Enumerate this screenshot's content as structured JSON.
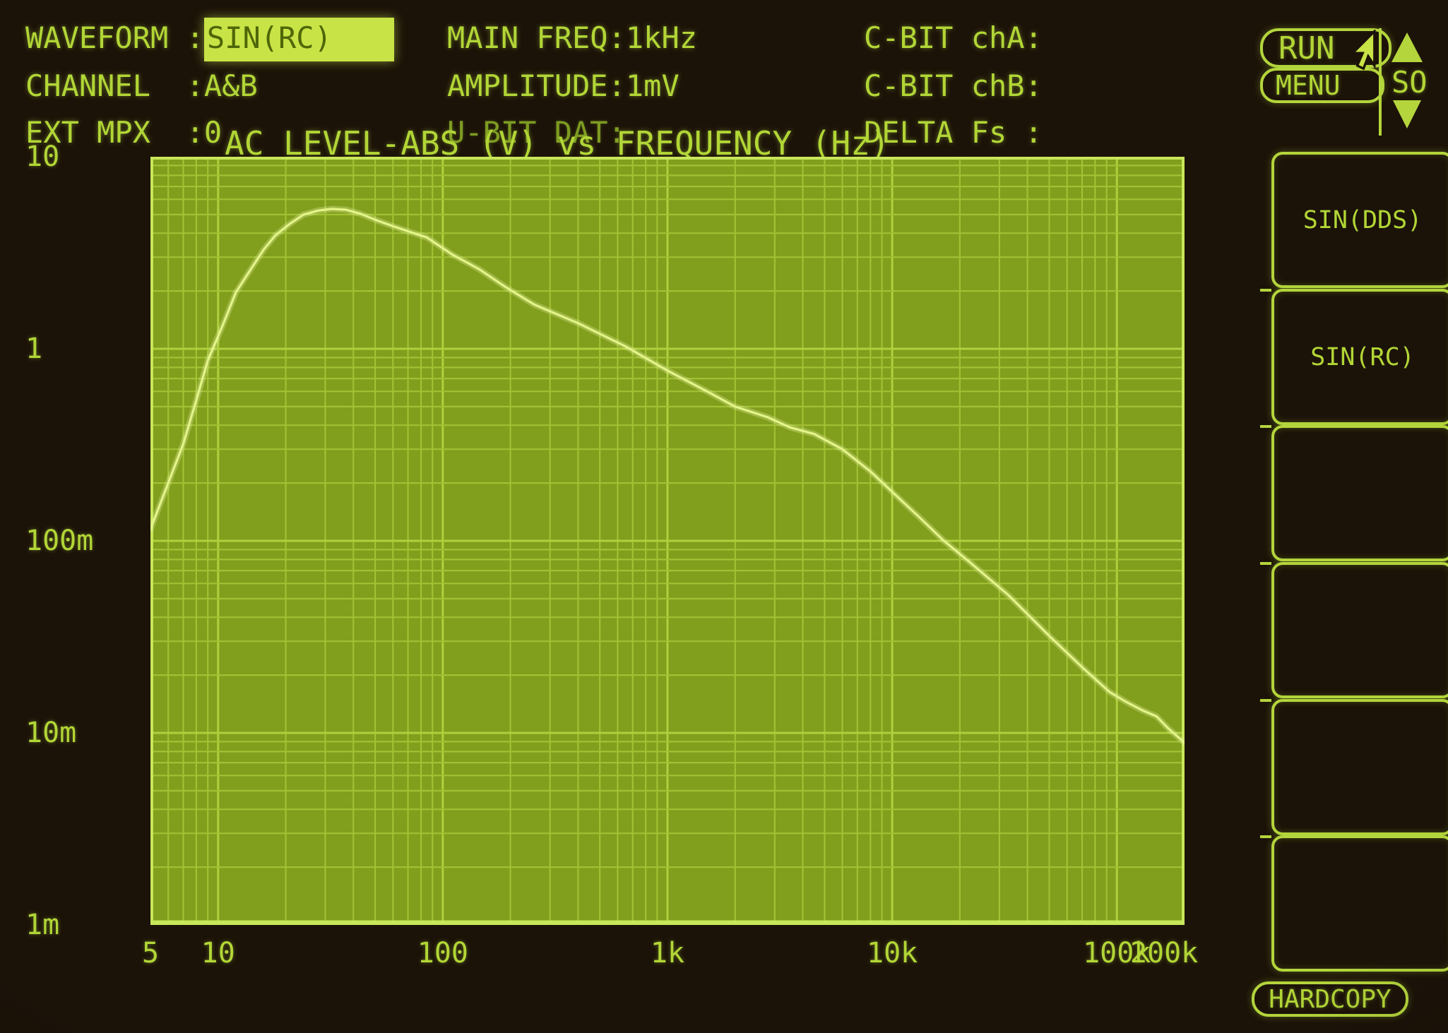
{
  "colors": {
    "background": "#1c1308",
    "text": "#b2d636",
    "text_dim": "#7e9c22",
    "highlight_bg": "#c8e346",
    "highlight_text": "#4f6608",
    "plot_bg": "#819e1c",
    "grid_minor": "#a2c134",
    "grid_major": "#b0d03e",
    "plot_border": "#c8e65a",
    "curve": "#e4f488"
  },
  "header": {
    "left": [
      {
        "prefix": "WAVEFORM :",
        "value": "SIN(RC)",
        "highlighted": true
      },
      {
        "prefix": "CHANNEL  :",
        "value": "A&B"
      },
      {
        "prefix": "EXT MPX  :",
        "value": "0"
      }
    ],
    "middle": [
      {
        "prefix": "MAIN FREQ:",
        "value": "1kHz"
      },
      {
        "prefix": "AMPLITUDE:",
        "value": "1mV"
      },
      {
        "prefix": "U-BIT DAT:",
        "value": "",
        "dim": true
      }
    ],
    "right": [
      {
        "prefix": "C-BIT chA:",
        "value": ""
      },
      {
        "prefix": "C-BIT chB:",
        "value": ""
      },
      {
        "prefix": "DELTA Fs :",
        "value": ""
      }
    ]
  },
  "controls": {
    "run": "RUN",
    "menu": "MENU",
    "scroll_label": "SO",
    "hardcopy": "HARDCOPY"
  },
  "sidebar": {
    "items": [
      {
        "label": "SIN(DDS)"
      },
      {
        "label": "SIN(RC)"
      },
      {
        "label": ""
      },
      {
        "label": ""
      },
      {
        "label": ""
      },
      {
        "label": ""
      }
    ]
  },
  "chart_data": {
    "type": "line",
    "title": "AC LEVEL-ABS (V) vs FREQUENCY (Hz)",
    "xlabel": "FREQUENCY (Hz)",
    "ylabel": "AC LEVEL-ABS (V)",
    "x_axis": {
      "scale": "log",
      "min": 5,
      "max": 200000,
      "tick_labels": [
        {
          "f": 5,
          "t": "5"
        },
        {
          "f": 10,
          "t": "10"
        },
        {
          "f": 100,
          "t": "100"
        },
        {
          "f": 1000,
          "t": "1k"
        },
        {
          "f": 10000,
          "t": "10k"
        },
        {
          "f": 100000,
          "t": "100k"
        },
        {
          "f": 200000,
          "t": "200k"
        }
      ]
    },
    "y_axis": {
      "scale": "log",
      "min": 0.001,
      "max": 10,
      "tick_labels": [
        {
          "v": 10,
          "t": "10"
        },
        {
          "v": 1,
          "t": "1"
        },
        {
          "v": 0.1,
          "t": "100m"
        },
        {
          "v": 0.01,
          "t": "10m"
        },
        {
          "v": 0.001,
          "t": "1m"
        }
      ]
    },
    "grid": "log-log full decade grid",
    "legend": "none",
    "series": [
      {
        "name": "AC LEVEL-ABS vs FREQUENCY",
        "points": [
          [
            5,
            0.115
          ],
          [
            6,
            0.2
          ],
          [
            7,
            0.32
          ],
          [
            8,
            0.54
          ],
          [
            9,
            0.87
          ],
          [
            10.5,
            1.33
          ],
          [
            12,
            1.97
          ],
          [
            14,
            2.6
          ],
          [
            16,
            3.3
          ],
          [
            18,
            3.9
          ],
          [
            21,
            4.5
          ],
          [
            24,
            5.0
          ],
          [
            28,
            5.25
          ],
          [
            32,
            5.35
          ],
          [
            37,
            5.3
          ],
          [
            43,
            5.05
          ],
          [
            50,
            4.7
          ],
          [
            60,
            4.35
          ],
          [
            72,
            4.05
          ],
          [
            85,
            3.8
          ],
          [
            110,
            3.1
          ],
          [
            145,
            2.6
          ],
          [
            190,
            2.1
          ],
          [
            255,
            1.7
          ],
          [
            400,
            1.36
          ],
          [
            650,
            1.03
          ],
          [
            1000,
            0.77
          ],
          [
            1500,
            0.6
          ],
          [
            2000,
            0.5
          ],
          [
            2800,
            0.44
          ],
          [
            3500,
            0.39
          ],
          [
            4500,
            0.36
          ],
          [
            6000,
            0.3
          ],
          [
            8000,
            0.23
          ],
          [
            10000,
            0.18
          ],
          [
            13000,
            0.135
          ],
          [
            17000,
            0.1
          ],
          [
            22000,
            0.078
          ],
          [
            33000,
            0.052
          ],
          [
            50000,
            0.032
          ],
          [
            70000,
            0.022
          ],
          [
            93000,
            0.0163
          ],
          [
            110000,
            0.0145
          ],
          [
            130000,
            0.0131
          ],
          [
            150000,
            0.0122
          ],
          [
            170000,
            0.0105
          ],
          [
            200000,
            0.0089
          ]
        ]
      }
    ]
  }
}
